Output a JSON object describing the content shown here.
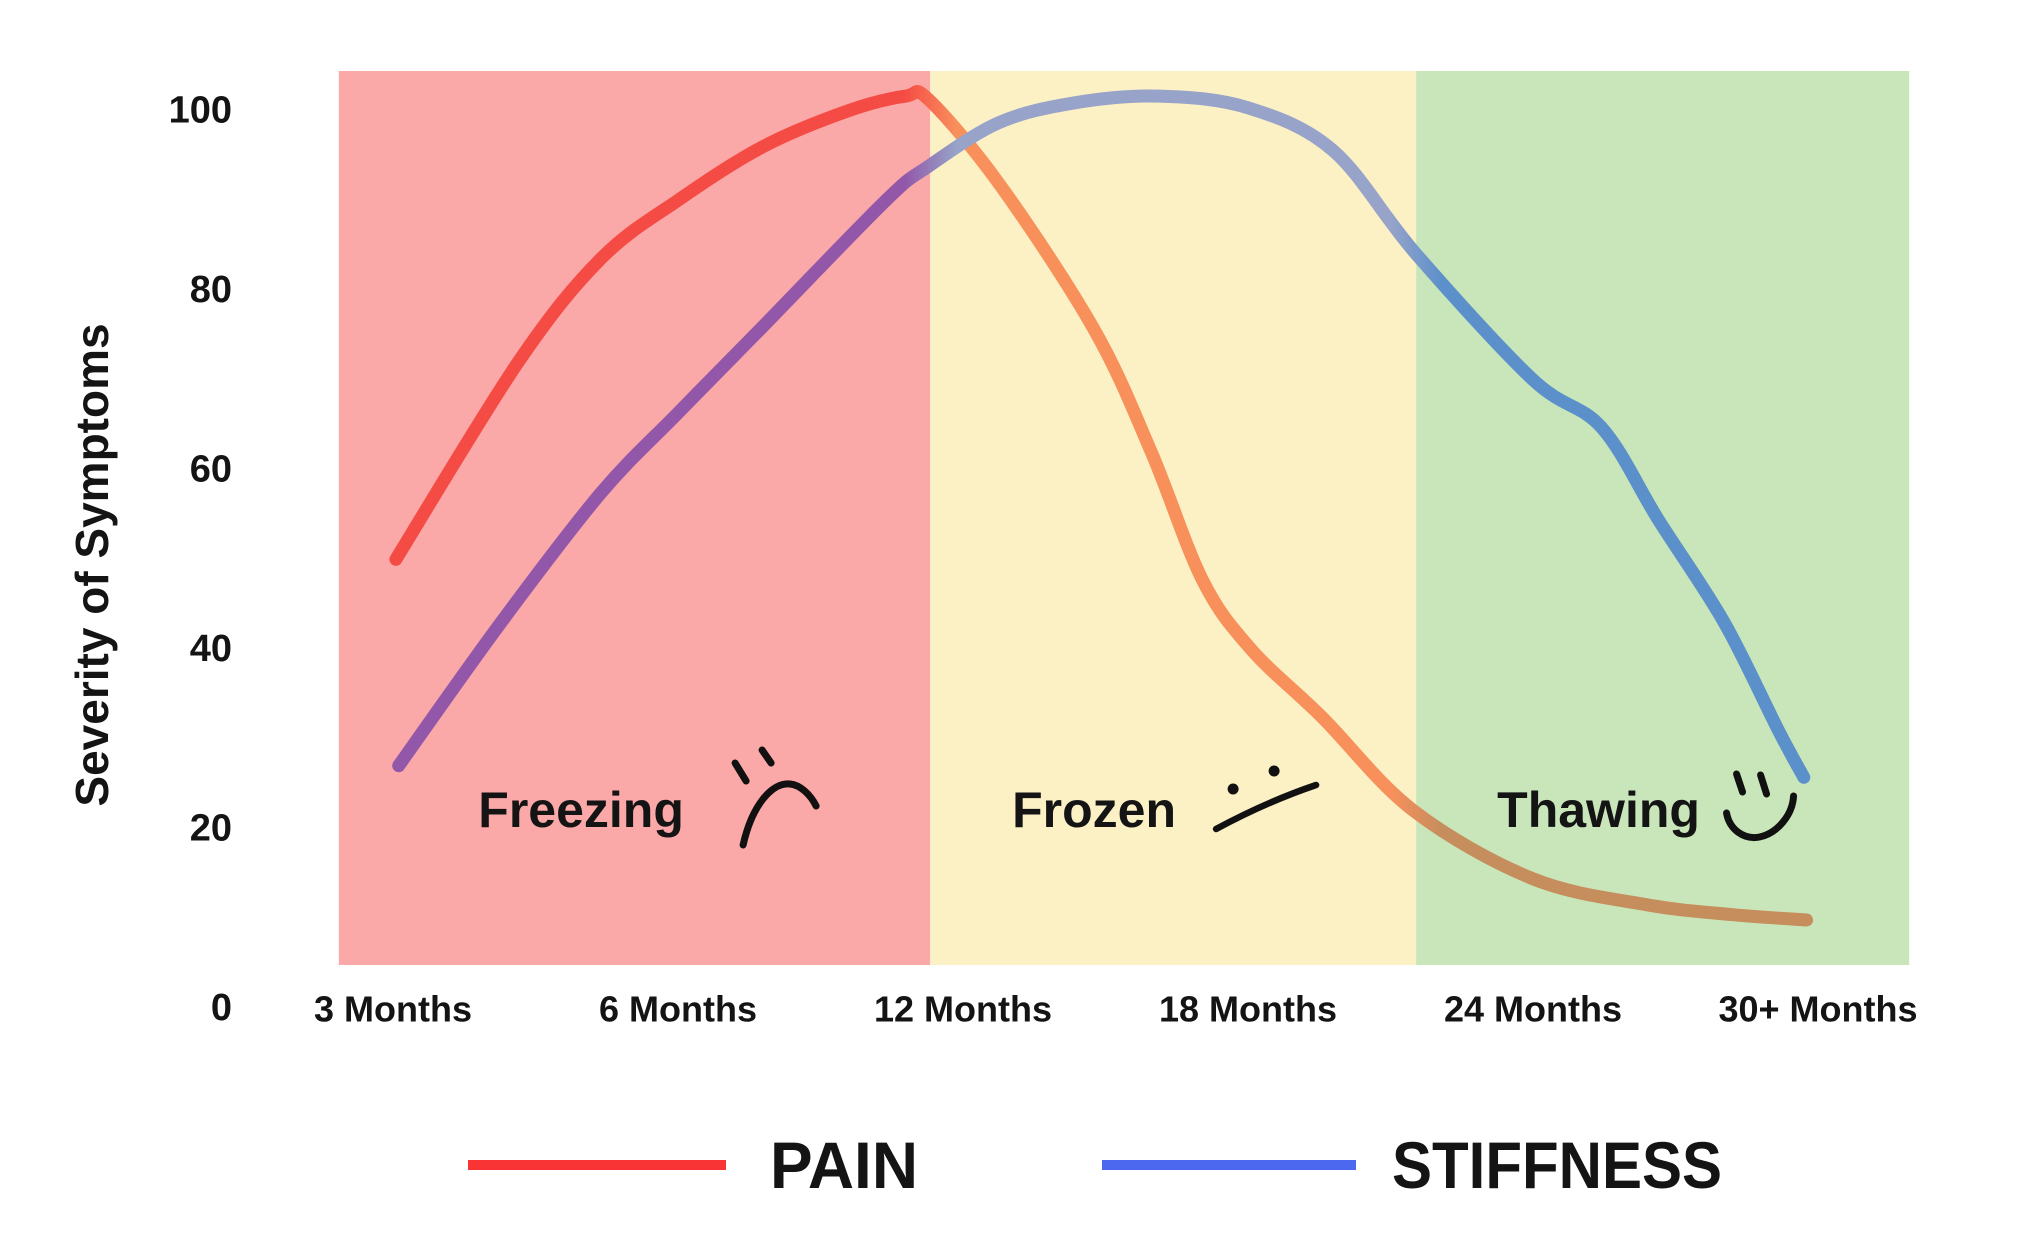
{
  "chart_data": {
    "type": "line",
    "title": "",
    "ylabel": "Severity of Symptoms",
    "xlabel": "",
    "x_categories": [
      "3 Months",
      "6 Months",
      "12 Months",
      "18 Months",
      "24 Months",
      "30+ Months"
    ],
    "y_ticks": [
      0,
      20,
      40,
      60,
      80,
      100
    ],
    "ylim": [
      0,
      104
    ],
    "grid": false,
    "legend_position": "bottom",
    "phases": [
      {
        "label": "Freezing",
        "face": "sad",
        "color": "#FBA8A8",
        "x_start": -0.19,
        "x_end": 1.885,
        "label_x": 0.66
      },
      {
        "label": "Frozen",
        "face": "neutral",
        "color": "#FCF1C5",
        "x_start": 1.885,
        "x_end": 3.59,
        "label_x": 2.46
      },
      {
        "label": "Thawing",
        "face": "happy",
        "color": "#C9E6BA",
        "x_start": 3.59,
        "x_end": 5.32,
        "label_x": 4.23
      }
    ],
    "series": [
      {
        "name": "PAIN",
        "legend_color": "#F93434",
        "zone_colors": [
          "#F54B45",
          "#F8905C",
          "#C68D5D"
        ],
        "points": [
          [
            0.01,
            50
          ],
          [
            0.44,
            72
          ],
          [
            0.73,
            83.5
          ],
          [
            1.0,
            90
          ],
          [
            1.3,
            96
          ],
          [
            1.6,
            100
          ],
          [
            1.8,
            101.6
          ],
          [
            1.88,
            101.2
          ],
          [
            2.13,
            91.7
          ],
          [
            2.46,
            75.6
          ],
          [
            2.66,
            62
          ],
          [
            2.84,
            47.7
          ],
          [
            3.01,
            40
          ],
          [
            3.26,
            32.4
          ],
          [
            3.58,
            22
          ],
          [
            4.0,
            14.4
          ],
          [
            4.4,
            11.5
          ],
          [
            4.7,
            10.4
          ],
          [
            4.96,
            9.8
          ]
        ]
      },
      {
        "name": "STIFFNESS",
        "legend_color": "#4C68EF",
        "zone_colors": [
          "#9257A8",
          "#97A3C9",
          "#5C90CA"
        ],
        "points": [
          [
            0.02,
            27
          ],
          [
            0.38,
            43
          ],
          [
            0.73,
            57.4
          ],
          [
            1.0,
            66.3
          ],
          [
            1.3,
            76
          ],
          [
            1.73,
            90
          ],
          [
            1.88,
            93.8
          ],
          [
            2.13,
            98.7
          ],
          [
            2.4,
            100.9
          ],
          [
            2.69,
            101.6
          ],
          [
            3.0,
            100.3
          ],
          [
            3.3,
            95.5
          ],
          [
            3.59,
            84
          ],
          [
            4.0,
            70
          ],
          [
            4.24,
            64.7
          ],
          [
            4.44,
            54.4
          ],
          [
            4.67,
            43
          ],
          [
            4.86,
            31
          ],
          [
            4.95,
            25.7
          ]
        ]
      }
    ]
  },
  "legend": {
    "items": [
      {
        "label": "PAIN"
      },
      {
        "label": "STIFFNESS"
      }
    ]
  }
}
